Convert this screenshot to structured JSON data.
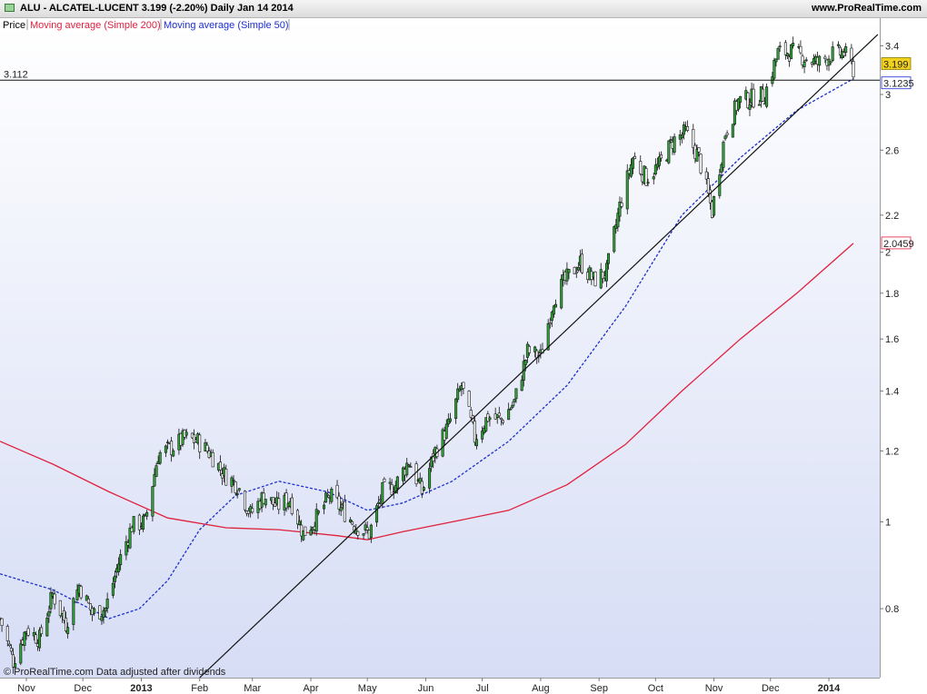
{
  "header": {
    "title": "ALU - ALCATEL-LUCENT     3.199 (-2.20%)     Daily  Jan 14 2014",
    "site": "www.ProRealTime.com"
  },
  "legend": [
    {
      "label": "Price",
      "color": "#000000"
    },
    {
      "label": "Moving average (Simple 200)",
      "color": "#e0203c"
    },
    {
      "label": "Moving average (Simple 50)",
      "color": "#1a2fd0"
    }
  ],
  "footer": "© ProRealTime.com  Data adjusted after dividends",
  "chart_data": {
    "type": "candlestick-line",
    "y_scale": "log",
    "ylim": [
      0.67,
      3.65
    ],
    "y_ticks": [
      0.8,
      1,
      1.2,
      1.4,
      1.6,
      1.8,
      2,
      2.2,
      2.6,
      3,
      3.4
    ],
    "x_ticks": [
      {
        "label": "Nov",
        "date": "2012-11-01"
      },
      {
        "label": "Dec",
        "date": "2012-12-01"
      },
      {
        "label": "2013",
        "date": "2013-01-01",
        "bold": true
      },
      {
        "label": "Feb",
        "date": "2013-02-01"
      },
      {
        "label": "Mar",
        "date": "2013-03-01"
      },
      {
        "label": "Apr",
        "date": "2013-04-01"
      },
      {
        "label": "May",
        "date": "2013-05-01"
      },
      {
        "label": "Jun",
        "date": "2013-06-01"
      },
      {
        "label": "Jul",
        "date": "2013-07-01"
      },
      {
        "label": "Aug",
        "date": "2013-08-01"
      },
      {
        "label": "Sep",
        "date": "2013-09-01"
      },
      {
        "label": "Oct",
        "date": "2013-10-01"
      },
      {
        "label": "Nov",
        "date": "2013-11-01"
      },
      {
        "label": "Dec",
        "date": "2013-12-01"
      },
      {
        "label": "2014",
        "date": "2014-01-01",
        "bold": true
      }
    ],
    "x_range": [
      "2012-10-18",
      "2014-01-28"
    ],
    "price_close_path": [
      [
        "2012-10-18",
        0.78
      ],
      [
        "2012-10-25",
        0.7
      ],
      [
        "2012-11-01",
        0.76
      ],
      [
        "2012-11-08",
        0.74
      ],
      [
        "2012-11-15",
        0.83
      ],
      [
        "2012-11-22",
        0.77
      ],
      [
        "2012-11-29",
        0.85
      ],
      [
        "2012-12-06",
        0.79
      ],
      [
        "2012-12-13",
        0.8
      ],
      [
        "2012-12-20",
        0.9
      ],
      [
        "2012-12-27",
        0.99
      ],
      [
        "2013-01-03",
        1.0
      ],
      [
        "2013-01-10",
        1.19
      ],
      [
        "2013-01-17",
        1.21
      ],
      [
        "2013-01-24",
        1.24
      ],
      [
        "2013-01-31",
        1.23
      ],
      [
        "2013-02-07",
        1.19
      ],
      [
        "2013-02-14",
        1.13
      ],
      [
        "2013-02-21",
        1.1
      ],
      [
        "2013-02-28",
        1.02
      ],
      [
        "2013-03-07",
        1.07
      ],
      [
        "2013-03-14",
        1.04
      ],
      [
        "2013-03-21",
        1.06
      ],
      [
        "2013-03-28",
        0.97
      ],
      [
        "2013-04-04",
        1.01
      ],
      [
        "2013-04-11",
        1.07
      ],
      [
        "2013-04-18",
        1.03
      ],
      [
        "2013-04-25",
        0.99
      ],
      [
        "2013-05-02",
        0.97
      ],
      [
        "2013-05-09",
        1.08
      ],
      [
        "2013-05-16",
        1.1
      ],
      [
        "2013-05-23",
        1.17
      ],
      [
        "2013-05-30",
        1.08
      ],
      [
        "2013-06-06",
        1.2
      ],
      [
        "2013-06-13",
        1.28
      ],
      [
        "2013-06-20",
        1.42
      ],
      [
        "2013-06-27",
        1.24
      ],
      [
        "2013-07-04",
        1.31
      ],
      [
        "2013-07-11",
        1.3
      ],
      [
        "2013-07-18",
        1.36
      ],
      [
        "2013-07-25",
        1.55
      ],
      [
        "2013-08-01",
        1.53
      ],
      [
        "2013-08-08",
        1.78
      ],
      [
        "2013-08-15",
        1.87
      ],
      [
        "2013-08-22",
        1.95
      ],
      [
        "2013-08-29",
        1.86
      ],
      [
        "2013-09-05",
        1.9
      ],
      [
        "2013-09-12",
        2.25
      ],
      [
        "2013-09-19",
        2.55
      ],
      [
        "2013-09-26",
        2.42
      ],
      [
        "2013-10-03",
        2.5
      ],
      [
        "2013-10-10",
        2.66
      ],
      [
        "2013-10-17",
        2.72
      ],
      [
        "2013-10-24",
        2.55
      ],
      [
        "2013-10-31",
        2.22
      ],
      [
        "2013-11-07",
        2.72
      ],
      [
        "2013-11-14",
        2.95
      ],
      [
        "2013-11-21",
        2.97
      ],
      [
        "2013-11-28",
        3.0
      ],
      [
        "2013-12-05",
        3.34
      ],
      [
        "2013-12-12",
        3.35
      ],
      [
        "2013-12-19",
        3.3
      ],
      [
        "2013-12-26",
        3.25
      ],
      [
        "2014-01-02",
        3.32
      ],
      [
        "2014-01-09",
        3.34
      ],
      [
        "2014-01-14",
        3.199
      ]
    ],
    "series": [
      {
        "name": "Moving average (Simple 200)",
        "color": "#e0203c",
        "style": "solid",
        "points": [
          [
            "2012-10-18",
            1.23
          ],
          [
            "2012-11-15",
            1.16
          ],
          [
            "2012-12-15",
            1.08
          ],
          [
            "2013-01-15",
            1.01
          ],
          [
            "2013-02-15",
            0.985
          ],
          [
            "2013-03-15",
            0.98
          ],
          [
            "2013-04-15",
            0.965
          ],
          [
            "2013-05-01",
            0.955
          ],
          [
            "2013-05-20",
            0.975
          ],
          [
            "2013-06-15",
            1.0
          ],
          [
            "2013-07-15",
            1.03
          ],
          [
            "2013-08-15",
            1.1
          ],
          [
            "2013-09-15",
            1.22
          ],
          [
            "2013-10-15",
            1.4
          ],
          [
            "2013-11-15",
            1.6
          ],
          [
            "2013-12-15",
            1.8
          ],
          [
            "2014-01-14",
            2.0459
          ]
        ]
      },
      {
        "name": "Moving average (Simple 50)",
        "color": "#1a2fd0",
        "style": "dashed",
        "points": [
          [
            "2012-10-18",
            0.875
          ],
          [
            "2012-11-15",
            0.84
          ],
          [
            "2012-12-15",
            0.78
          ],
          [
            "2012-12-31",
            0.8
          ],
          [
            "2013-01-15",
            0.86
          ],
          [
            "2013-02-01",
            0.98
          ],
          [
            "2013-02-20",
            1.07
          ],
          [
            "2013-03-15",
            1.11
          ],
          [
            "2013-04-10",
            1.08
          ],
          [
            "2013-05-01",
            1.03
          ],
          [
            "2013-05-20",
            1.05
          ],
          [
            "2013-06-15",
            1.11
          ],
          [
            "2013-07-15",
            1.23
          ],
          [
            "2013-08-15",
            1.42
          ],
          [
            "2013-09-15",
            1.74
          ],
          [
            "2013-10-15",
            2.2
          ],
          [
            "2013-11-15",
            2.55
          ],
          [
            "2013-12-15",
            2.88
          ],
          [
            "2014-01-14",
            3.1235
          ]
        ]
      }
    ],
    "trendline": [
      [
        "2013-02-01",
        0.67
      ],
      [
        "2014-01-27",
        3.5
      ]
    ],
    "horizontal_line": {
      "value": 3.112,
      "label": "3.112"
    },
    "price_labels": [
      {
        "value": 3.199,
        "label": "3.199",
        "bg": "#f2d21c",
        "fg": "#000000"
      },
      {
        "value": 3.1235,
        "label": "3.1235",
        "bg": "#ffffff",
        "fg": "#1a2fd0"
      },
      {
        "value": 2.0459,
        "label": "2.0459",
        "bg": "#ffffff",
        "fg": "#e0203c"
      }
    ]
  }
}
